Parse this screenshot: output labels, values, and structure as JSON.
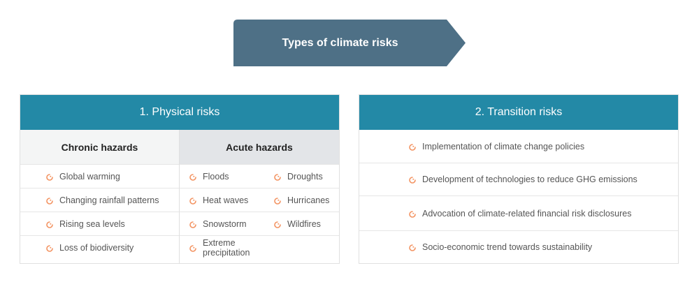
{
  "banner": {
    "title": "Types of climate risks"
  },
  "colors": {
    "banner": "#4e7086",
    "header": "#2389a6",
    "chronic_bg": "#f4f5f5",
    "acute_bg": "#e3e5e8",
    "bullet": "#f39361"
  },
  "physical": {
    "title": "1. Physical risks",
    "chronic": {
      "heading": "Chronic hazards",
      "items": [
        "Global warming",
        "Changing rainfall patterns",
        "Rising sea levels",
        "Loss of biodiversity"
      ]
    },
    "acute": {
      "heading": "Acute hazards",
      "rows": [
        [
          "Floods",
          "Droughts"
        ],
        [
          "Heat waves",
          "Hurricanes"
        ],
        [
          "Snowstorm",
          "Wildfires"
        ],
        [
          "Extreme precipitation"
        ]
      ]
    }
  },
  "transition": {
    "title": "2. Transition risks",
    "items": [
      "Implementation of climate change policies",
      "Development of technologies to reduce GHG emissions",
      "Advocation of climate-related financial risk disclosures",
      "Socio-economic trend towards sustainability"
    ]
  }
}
